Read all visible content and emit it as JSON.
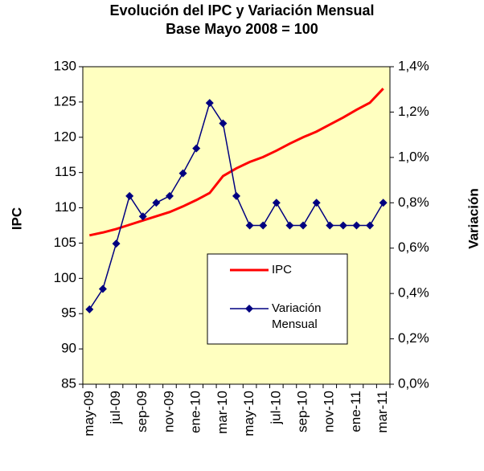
{
  "chart_data": {
    "type": "line",
    "title": "Evolución del IPC y Variación Mensual",
    "subtitle": "Base Mayo 2008  = 100",
    "y_label": "IPC",
    "y2_label": "Variación",
    "categories": [
      "may-09",
      null,
      "jul-09",
      null,
      "sep-09",
      null,
      "nov-09",
      null,
      "ene-10",
      null,
      "mar-10",
      null,
      "may-10",
      null,
      "jul-10",
      null,
      "sep-10",
      null,
      "nov-10",
      null,
      "ene-11",
      null,
      "mar-11"
    ],
    "series": [
      {
        "name": "IPC",
        "color": "#ff0000",
        "values": [
          106.1,
          106.5,
          107.0,
          107.6,
          108.2,
          108.8,
          109.4,
          110.2,
          111.1,
          112.1,
          114.5,
          115.6,
          116.5,
          117.2,
          118.1,
          119.1,
          120.0,
          120.8,
          121.8,
          122.8,
          123.9,
          124.9,
          126.9
        ]
      },
      {
        "name": "Variación Mensual",
        "color": "#000080",
        "axis": "y2",
        "values": [
          0.33,
          0.42,
          0.62,
          0.83,
          0.74,
          0.8,
          0.83,
          0.93,
          1.04,
          1.24,
          1.15,
          0.83,
          0.7,
          0.7,
          0.8,
          0.7,
          0.7,
          0.8,
          0.7,
          0.7,
          0.7,
          0.7,
          0.8
        ]
      }
    ],
    "ylim": [
      85,
      130
    ],
    "yticks": [
      85,
      90,
      95,
      100,
      105,
      110,
      115,
      120,
      125,
      130
    ],
    "y2lim": [
      0,
      1.4
    ],
    "y2ticks": [
      {
        "value": 0,
        "label": "0,0%"
      },
      {
        "value": 0.2,
        "label": "0,2%"
      },
      {
        "value": 0.4,
        "label": "0,4%"
      },
      {
        "value": 0.6,
        "label": "0,6%"
      },
      {
        "value": 0.8,
        "label": "0,8%"
      },
      {
        "value": 1.0,
        "label": "1,0%"
      },
      {
        "value": 1.2,
        "label": "1,2%"
      },
      {
        "value": 1.4,
        "label": "1,4%"
      }
    ],
    "plot_background": "#ffffc0",
    "grid": false
  }
}
